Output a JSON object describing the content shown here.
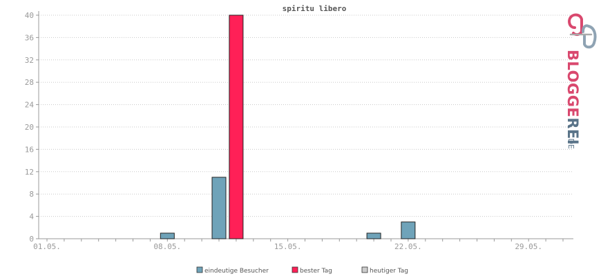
{
  "chart_data": {
    "type": "bar",
    "title": "spiritu libero",
    "xlabel": "",
    "ylabel": "",
    "ylim": [
      0,
      40
    ],
    "yticks": [
      0,
      4,
      8,
      12,
      16,
      20,
      24,
      28,
      32,
      36,
      40
    ],
    "x_tick_labels": [
      "01.05.",
      "08.05.",
      "15.05.",
      "22.05.",
      "29.05."
    ],
    "x_tick_days": [
      1,
      8,
      15,
      22,
      29
    ],
    "days": [
      1,
      31
    ],
    "grid": true,
    "legend_position": "bottom",
    "series": [
      {
        "name": "eindeutige Besucher",
        "color": "#6fa3b9",
        "points": [
          {
            "day": 8,
            "value": 1
          },
          {
            "day": 11,
            "value": 11
          },
          {
            "day": 20,
            "value": 1
          },
          {
            "day": 22,
            "value": 3
          }
        ]
      },
      {
        "name": "bester Tag",
        "color": "#ff2057",
        "points": [
          {
            "day": 12,
            "value": 40
          }
        ]
      },
      {
        "name": "heutiger Tag",
        "color": "#cccccc",
        "points": []
      }
    ]
  },
  "logo": {
    "text": "BLOGGEREI",
    "suffix": ".DE",
    "colors": {
      "pink": "#d9486e",
      "blue": "#5a7489"
    }
  }
}
